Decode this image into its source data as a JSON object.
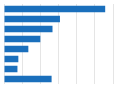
{
  "chart_data": {
    "type": "bar",
    "orientation": "horizontal",
    "categories": [
      null,
      null,
      null,
      null,
      null,
      null,
      null,
      null
    ],
    "values": [
      557000,
      308000,
      267000,
      200000,
      134000,
      79000,
      74000,
      262000
    ],
    "color": "#1a6fbc",
    "xlim": [
      0,
      600000
    ],
    "xticks": [
      0,
      100000,
      200000,
      300000,
      400000,
      500000,
      600000
    ],
    "grid": true,
    "tick_labels": false
  }
}
